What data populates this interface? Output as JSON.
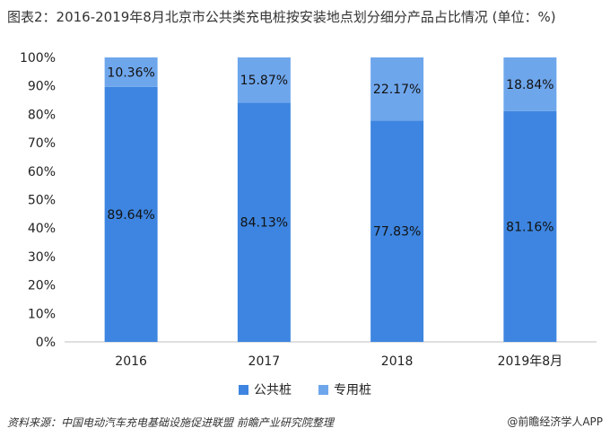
{
  "title": "图表2：2016-2019年8月北京市公共类充电桩按安装地点划分细分产品占比情况 (单位：%)",
  "source": "资料来源：中国电动汽车充电基础设施促进联盟 前瞻产业研究院整理",
  "credit": "@前瞻经济学人APP",
  "colors": {
    "public": "#3d85e0",
    "dedicated": "#6ea6ec"
  },
  "chart_data": {
    "type": "bar",
    "stacked": true,
    "categories": [
      "2016",
      "2017",
      "2018",
      "2019年8月"
    ],
    "series": [
      {
        "name": "公共桩",
        "values": [
          89.64,
          84.13,
          77.83,
          81.16
        ],
        "labels": [
          "89.64%",
          "84.13%",
          "77.83%",
          "81.16%"
        ]
      },
      {
        "name": "专用桩",
        "values": [
          10.36,
          15.87,
          22.17,
          18.84
        ],
        "labels": [
          "10.36%",
          "15.87%",
          "22.17%",
          "18.84%"
        ]
      }
    ],
    "ylim": [
      0,
      100
    ],
    "yticks": [
      "0%",
      "10%",
      "20%",
      "30%",
      "40%",
      "50%",
      "60%",
      "70%",
      "80%",
      "90%",
      "100%"
    ],
    "grid": false,
    "legend": "bottom"
  }
}
